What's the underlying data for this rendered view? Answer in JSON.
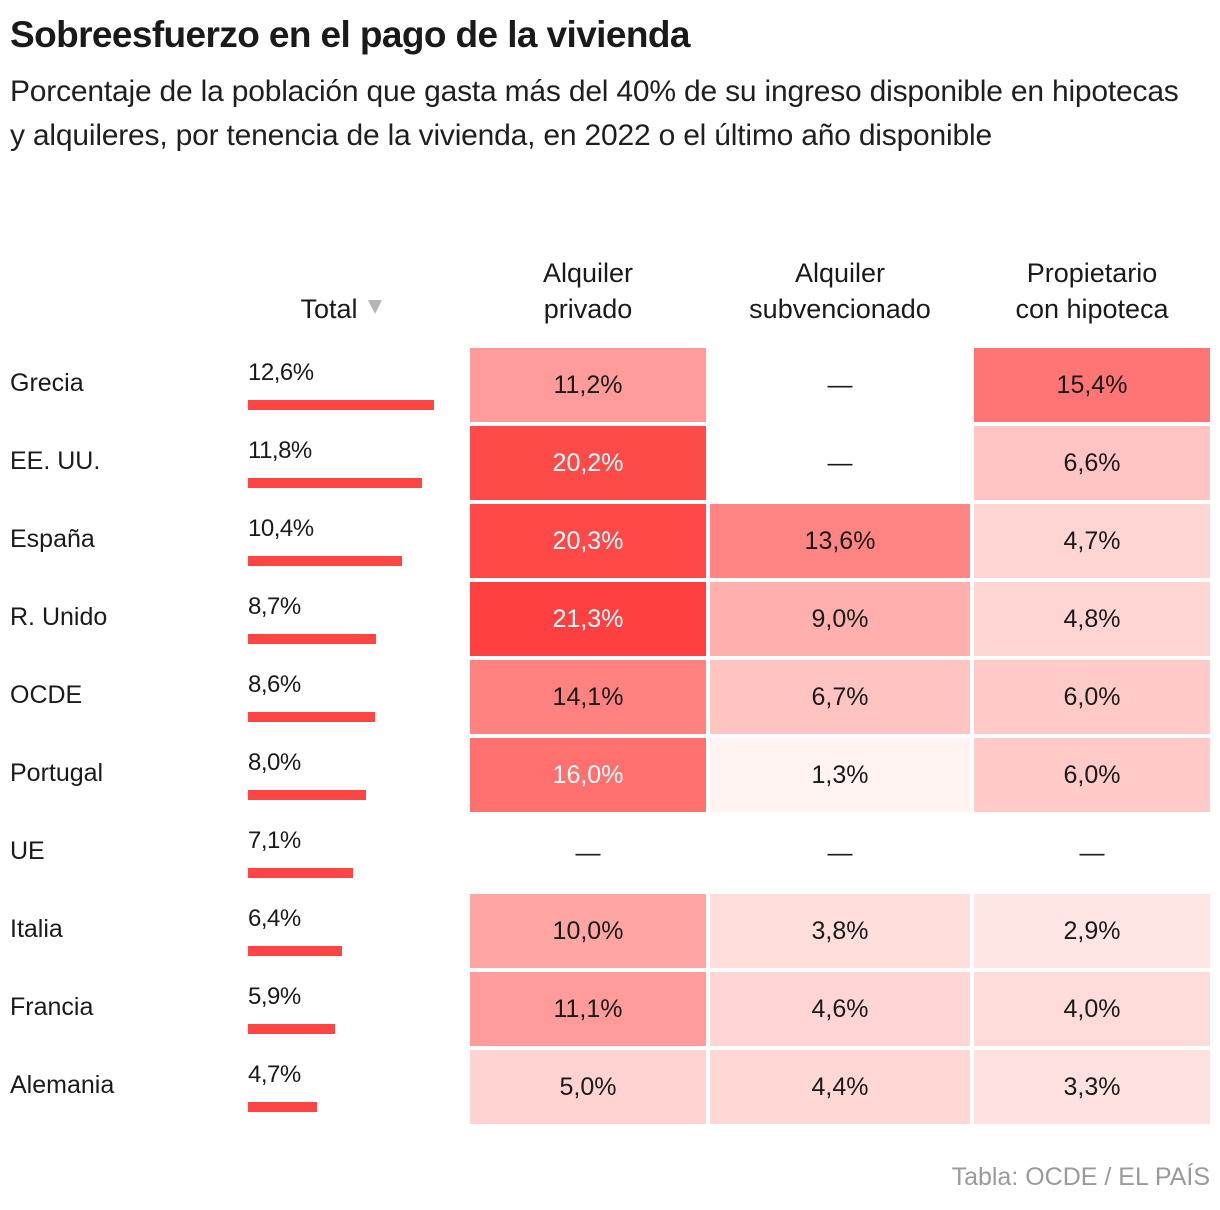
{
  "header": {
    "title": "Sobreesfuerzo en el pago de la vivienda",
    "subtitle": "Porcentaje de la población que gasta más del 40% de su ingreso disponible en hipotecas y alquileres, por tenencia de la vivienda, en 2022 o el último año disponible"
  },
  "columns": {
    "total": "Total",
    "total_sort_icon": "sort-descending-icon",
    "col1_line1": "Alquiler",
    "col1_line2": "privado",
    "col2_line1": "Alquiler",
    "col2_line2": "subvencionado",
    "col3_line1": "Propietario",
    "col3_line2": "con hipoteca"
  },
  "footer": {
    "source": "Tabla: OCDE / EL PAÍS"
  },
  "colors": {
    "bar": "#ff4444",
    "heat_max": "#ff4040",
    "heat_min": "#fff4f2",
    "missing_text": "#1a1a1a"
  },
  "chart_data": {
    "type": "table",
    "title": "Sobreesfuerzo en el pago de la vivienda",
    "subtitle": "Porcentaje de la población que gasta más del 40% de su ingreso disponible en hipotecas y alquileres, por tenencia de la vivienda, en 2022 o el último año disponible",
    "sorted_by": "Total",
    "sort_order": "descending",
    "columns": [
      "Total",
      "Alquiler privado",
      "Alquiler subvencionado",
      "Propietario con hipoteca"
    ],
    "missing_symbol": "—",
    "rows": [
      {
        "country": "Grecia",
        "total": 12.6,
        "total_label": "12,6%",
        "cells": [
          {
            "value": 11.2,
            "label": "11,2%"
          },
          {
            "value": null,
            "label": "—"
          },
          {
            "value": 15.4,
            "label": "15,4%"
          }
        ]
      },
      {
        "country": "EE. UU.",
        "total": 11.8,
        "total_label": "11,8%",
        "cells": [
          {
            "value": 20.2,
            "label": "20,2%"
          },
          {
            "value": null,
            "label": "—"
          },
          {
            "value": 6.6,
            "label": "6,6%"
          }
        ]
      },
      {
        "country": "España",
        "total": 10.4,
        "total_label": "10,4%",
        "cells": [
          {
            "value": 20.3,
            "label": "20,3%"
          },
          {
            "value": 13.6,
            "label": "13,6%"
          },
          {
            "value": 4.7,
            "label": "4,7%"
          }
        ]
      },
      {
        "country": "R. Unido",
        "total": 8.7,
        "total_label": "8,7%",
        "cells": [
          {
            "value": 21.3,
            "label": "21,3%"
          },
          {
            "value": 9.0,
            "label": "9,0%"
          },
          {
            "value": 4.8,
            "label": "4,8%"
          }
        ]
      },
      {
        "country": "OCDE",
        "total": 8.6,
        "total_label": "8,6%",
        "cells": [
          {
            "value": 14.1,
            "label": "14,1%"
          },
          {
            "value": 6.7,
            "label": "6,7%"
          },
          {
            "value": 6.0,
            "label": "6,0%"
          }
        ]
      },
      {
        "country": "Portugal",
        "total": 8.0,
        "total_label": "8,0%",
        "cells": [
          {
            "value": 16.0,
            "label": "16,0%"
          },
          {
            "value": 1.3,
            "label": "1,3%"
          },
          {
            "value": 6.0,
            "label": "6,0%"
          }
        ]
      },
      {
        "country": "UE",
        "total": 7.1,
        "total_label": "7,1%",
        "cells": [
          {
            "value": null,
            "label": "—"
          },
          {
            "value": null,
            "label": "—"
          },
          {
            "value": null,
            "label": "—"
          }
        ]
      },
      {
        "country": "Italia",
        "total": 6.4,
        "total_label": "6,4%",
        "cells": [
          {
            "value": 10.0,
            "label": "10,0%"
          },
          {
            "value": 3.8,
            "label": "3,8%"
          },
          {
            "value": 2.9,
            "label": "2,9%"
          }
        ]
      },
      {
        "country": "Francia",
        "total": 5.9,
        "total_label": "5,9%",
        "cells": [
          {
            "value": 11.1,
            "label": "11,1%"
          },
          {
            "value": 4.6,
            "label": "4,6%"
          },
          {
            "value": 4.0,
            "label": "4,0%"
          }
        ]
      },
      {
        "country": "Alemania",
        "total": 4.7,
        "total_label": "4,7%",
        "cells": [
          {
            "value": 5.0,
            "label": "5,0%"
          },
          {
            "value": 4.4,
            "label": "4,4%"
          },
          {
            "value": 3.3,
            "label": "3,3%"
          }
        ]
      }
    ],
    "total_bar_max": 12.6,
    "heat_range": [
      1.3,
      21.3
    ],
    "white_text_threshold": 16.0,
    "source": "Tabla: OCDE / EL PAÍS"
  }
}
